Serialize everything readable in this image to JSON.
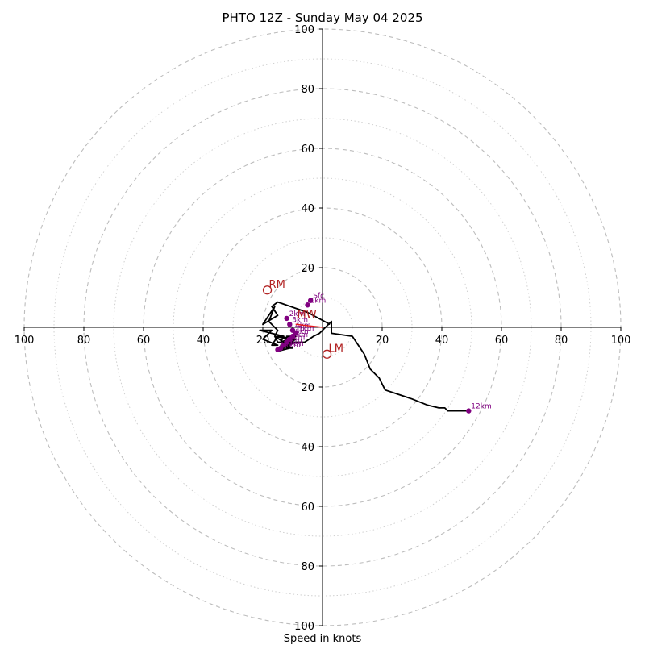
{
  "chart_data": {
    "type": "hodograph",
    "title": "PHTO 12Z - Sunday May 04 2025",
    "xlabel": "Speed in knots",
    "units": "knots",
    "range_max": 100,
    "major_rings": [
      20,
      40,
      60,
      80,
      100
    ],
    "minor_rings": [
      10,
      30,
      50,
      70,
      90
    ],
    "tick_labels": {
      "left": [
        "100",
        "80",
        "60",
        "40",
        "20"
      ],
      "right": [
        "20",
        "40",
        "60",
        "80",
        "100"
      ],
      "top": [
        "20",
        "40",
        "60",
        "80",
        "100"
      ],
      "bottom": [
        "20",
        "40",
        "60",
        "80",
        "100"
      ]
    },
    "hodograph_line": [
      [
        2.5,
        1.0
      ],
      [
        -5,
        5
      ],
      [
        -15,
        8.5
      ],
      [
        -17,
        7
      ],
      [
        -15,
        4
      ],
      [
        -20,
        1
      ],
      [
        -16,
        7
      ],
      [
        -18,
        2
      ],
      [
        -15,
        -1
      ],
      [
        -16,
        -3
      ],
      [
        -11,
        -4
      ],
      [
        -14,
        -6
      ],
      [
        -9,
        -5
      ],
      [
        -15,
        -8
      ],
      [
        -11,
        -7
      ],
      [
        -13,
        -6
      ],
      [
        -10,
        -4
      ],
      [
        -12,
        -3
      ],
      [
        -9,
        -3
      ],
      [
        -14,
        -5
      ],
      [
        -13,
        -3
      ],
      [
        -21,
        -1
      ],
      [
        -17,
        -1
      ],
      [
        -20,
        -4
      ],
      [
        -15,
        -6
      ],
      [
        -17,
        -6
      ],
      [
        -15,
        -3
      ],
      [
        -9,
        -4
      ],
      [
        -12,
        -6
      ],
      [
        -10,
        -7
      ],
      [
        -12,
        -7
      ],
      [
        -11,
        -5
      ],
      [
        -15,
        -5
      ],
      [
        -16,
        -3
      ],
      [
        -13,
        -5
      ],
      [
        -6,
        -5
      ],
      [
        -3,
        -3
      ],
      [
        -1,
        -2
      ],
      [
        3,
        2
      ],
      [
        3,
        -2
      ],
      [
        10,
        -3
      ],
      [
        14,
        -9
      ],
      [
        16,
        -14
      ],
      [
        19,
        -17
      ],
      [
        21,
        -21
      ],
      [
        24,
        -22
      ],
      [
        30,
        -24
      ],
      [
        35,
        -26
      ],
      [
        39,
        -27
      ],
      [
        41,
        -27
      ],
      [
        42,
        -28
      ],
      [
        49,
        -28
      ]
    ],
    "height_markers": [
      {
        "label": "Sfc",
        "u": -4,
        "v": 9
      },
      {
        "label": "1km",
        "u": -5,
        "v": 7.5
      },
      {
        "label": "2km",
        "u": -12,
        "v": 3
      },
      {
        "label": "3km",
        "u": -11,
        "v": 1
      },
      {
        "label": "4km",
        "u": -10,
        "v": -1
      },
      {
        "label": "5km",
        "u": -9,
        "v": -2
      },
      {
        "label": "6km",
        "u": -10,
        "v": -3
      },
      {
        "label": "7km",
        "u": -11,
        "v": -4
      },
      {
        "label": "8km",
        "u": -12,
        "v": -5
      },
      {
        "label": "9km",
        "u": -13,
        "v": -6
      },
      {
        "label": "10km",
        "u": -14,
        "v": -7
      },
      {
        "label": "11km",
        "u": -15,
        "v": -7.5
      },
      {
        "label": "12km",
        "u": 49,
        "v": -28
      }
    ],
    "storm_motion": {
      "RM": {
        "label": "RM",
        "u": -18.5,
        "v": 12.5
      },
      "LM": {
        "label": "LM",
        "u": 1.5,
        "v": -9
      },
      "MW": {
        "label": "MW",
        "u": -8.5,
        "v": 1.5
      },
      "vector_from": [
        0,
        0
      ],
      "vector_to": [
        -9,
        1
      ]
    }
  }
}
